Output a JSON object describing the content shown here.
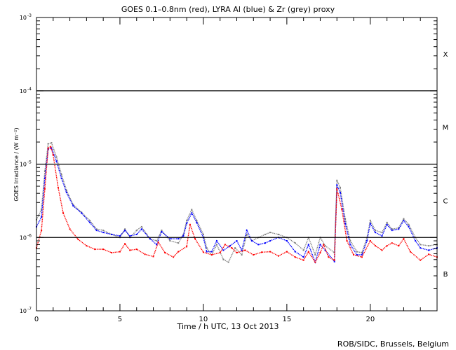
{
  "chart_data": {
    "type": "scatter",
    "title": "GOES 0.1–0.8nm (red), LYRA Al (blue) & Zr (grey) proxy",
    "xlabel": "Time / h UTC, 13 Oct 2013",
    "ylabel": "GOES Irradiance / (W m⁻²)",
    "xlim": [
      0,
      24
    ],
    "ylim": [
      1e-07,
      0.001
    ],
    "yscale": "log",
    "x_ticks": [
      "0",
      "5",
      "10",
      "15",
      "20"
    ],
    "x_tick_values": [
      0,
      5,
      10,
      15,
      20
    ],
    "y_ticks": [
      {
        "base": "10",
        "exp": "-7",
        "value": 1e-07
      },
      {
        "base": "10",
        "exp": "-6",
        "value": 1e-06
      },
      {
        "base": "10",
        "exp": "-5",
        "value": 1e-05
      },
      {
        "base": "10",
        "exp": "-4",
        "value": 0.0001
      },
      {
        "base": "10",
        "exp": "-3",
        "value": 0.001
      }
    ],
    "reference_lines": [
      0.0001,
      1e-05,
      1e-06
    ],
    "flare_classes": [
      {
        "label": "X",
        "value": 0.00032
      },
      {
        "label": "M",
        "value": 3.2e-05
      },
      {
        "label": "C",
        "value": 3.2e-06
      },
      {
        "label": "B",
        "value": 3.2e-07
      }
    ],
    "grid": false,
    "series": [
      {
        "name": "GOES 0.1-0.8nm",
        "color": "#ff0000",
        "x": [
          0,
          0.3,
          0.5,
          0.7,
          0.85,
          1.0,
          1.3,
          1.6,
          2.0,
          2.5,
          3.0,
          3.5,
          4.0,
          4.5,
          5.0,
          5.3,
          5.6,
          6.0,
          6.5,
          7.0,
          7.3,
          7.7,
          8.2,
          8.5,
          9.0,
          9.2,
          9.5,
          10.0,
          10.5,
          11.0,
          11.3,
          11.7,
          12.0,
          12.5,
          13.0,
          13.5,
          14.0,
          14.5,
          15.0,
          15.5,
          16.0,
          16.3,
          16.7,
          17.0,
          17.2,
          17.5,
          17.85,
          18.0,
          18.3,
          18.6,
          19.0,
          19.5,
          20.0,
          20.3,
          20.7,
          21.0,
          21.3,
          21.7,
          22.0,
          22.4,
          23.0,
          23.5,
          24.0
        ],
        "y": [
          7.2e-07,
          1.25e-06,
          4.6e-06,
          1.66e-05,
          1.73e-05,
          1.33e-05,
          4.8e-06,
          2.15e-06,
          1.3e-06,
          9.4e-07,
          7.7e-07,
          6.9e-07,
          6.9e-07,
          6.2e-07,
          6.4e-07,
          8.2e-07,
          6.7e-07,
          6.9e-07,
          5.9e-07,
          5.5e-07,
          8.6e-07,
          6.2e-07,
          5.4e-07,
          6.4e-07,
          7.5e-07,
          1.5e-06,
          9.6e-07,
          6.3e-07,
          5.8e-07,
          6.2e-07,
          8e-07,
          7.2e-07,
          6.2e-07,
          6.7e-07,
          5.8e-07,
          6.3e-07,
          6.4e-07,
          5.6e-07,
          6.4e-07,
          5.4e-07,
          4.9e-07,
          6.4e-07,
          4.6e-07,
          6.2e-07,
          8e-07,
          5.4e-07,
          4.9e-07,
          4.6e-06,
          2.4e-06,
          9e-07,
          5.8e-07,
          5.4e-07,
          9e-07,
          7.7e-07,
          6.7e-07,
          7.7e-07,
          8.4e-07,
          7.7e-07,
          9.6e-07,
          6.4e-07,
          4.9e-07,
          5.9e-07,
          5.4e-07
        ]
      },
      {
        "name": "LYRA Al proxy",
        "color": "#0000ff",
        "x": [
          0,
          0.3,
          0.5,
          0.7,
          0.9,
          1.2,
          1.5,
          1.8,
          2.2,
          2.7,
          3.2,
          3.6,
          4.0,
          4.5,
          5.0,
          5.3,
          5.6,
          6.0,
          6.3,
          6.8,
          7.2,
          7.5,
          8.0,
          8.5,
          8.8,
          9.0,
          9.3,
          9.6,
          10.0,
          10.2,
          10.5,
          10.8,
          11.2,
          11.6,
          12.0,
          12.3,
          12.6,
          12.9,
          13.3,
          13.7,
          14.0,
          14.5,
          15.0,
          15.5,
          16.0,
          16.3,
          16.7,
          17.0,
          17.3,
          17.85,
          18.0,
          18.2,
          18.5,
          18.8,
          19.2,
          19.5,
          19.8,
          20.0,
          20.3,
          20.7,
          21.0,
          21.3,
          21.7,
          22.0,
          22.3,
          22.7,
          23.0,
          23.5,
          24.0
        ],
        "y": [
          1.4e-06,
          1.9e-06,
          6.4e-06,
          1.6e-05,
          1.66e-05,
          1.1e-05,
          6.4e-06,
          4.1e-06,
          2.7e-06,
          2.15e-06,
          1.6e-06,
          1.25e-06,
          1.17e-06,
          1.1e-06,
          1.05e-06,
          1.25e-06,
          1.05e-06,
          1.1e-06,
          1.3e-06,
          9.6e-07,
          8e-07,
          1.2e-06,
          9.6e-07,
          9.6e-07,
          1.05e-06,
          1.55e-06,
          2.15e-06,
          1.6e-06,
          1e-06,
          6.4e-07,
          6.4e-07,
          9e-07,
          6.7e-07,
          7.7e-07,
          9e-07,
          6.7e-07,
          1.25e-06,
          9e-07,
          8e-07,
          8.4e-07,
          9e-07,
          1e-06,
          9e-07,
          6.4e-07,
          5.4e-07,
          8e-07,
          4.6e-07,
          8e-07,
          6.7e-07,
          4.7e-07,
          5.2e-06,
          4.1e-06,
          1.55e-06,
          8e-07,
          5.8e-07,
          5.8e-07,
          9e-07,
          1.55e-06,
          1.17e-06,
          1.05e-06,
          1.5e-06,
          1.25e-06,
          1.3e-06,
          1.7e-06,
          1.4e-06,
          9e-07,
          7.2e-07,
          6.7e-07,
          7.2e-07
        ]
      },
      {
        "name": "LYRA Zr proxy",
        "color": "#808080",
        "x": [
          0,
          0.3,
          0.5,
          0.7,
          0.9,
          1.2,
          1.5,
          1.8,
          2.2,
          2.7,
          3.2,
          3.6,
          4.0,
          4.5,
          5.0,
          5.3,
          5.6,
          6.0,
          6.3,
          6.8,
          7.2,
          7.5,
          8.0,
          8.5,
          8.8,
          9.0,
          9.3,
          9.6,
          10.0,
          10.2,
          10.5,
          10.8,
          11.2,
          11.5,
          11.9,
          12.3,
          12.6,
          12.9,
          13.3,
          13.7,
          14.0,
          14.5,
          15.0,
          15.5,
          16.0,
          16.3,
          16.7,
          17.0,
          17.3,
          17.85,
          18.0,
          18.2,
          18.5,
          18.8,
          19.2,
          19.5,
          19.8,
          20.0,
          20.3,
          20.7,
          21.0,
          21.3,
          21.7,
          22.0,
          22.3,
          22.7,
          23.0,
          23.5,
          24.0
        ],
        "y": [
          1.75e-06,
          2.4e-06,
          8e-06,
          1.9e-05,
          1.95e-05,
          1.25e-05,
          7.2e-06,
          4.4e-06,
          2.8e-06,
          2.2e-06,
          1.7e-06,
          1.3e-06,
          1.25e-06,
          1.1e-06,
          1e-06,
          1.3e-06,
          1e-06,
          1.25e-06,
          1.4e-06,
          9.6e-07,
          9e-07,
          1.25e-06,
          9e-07,
          8.4e-07,
          1.1e-06,
          1.7e-06,
          2.4e-06,
          1.7e-06,
          1.1e-06,
          7.2e-07,
          5.8e-07,
          8e-07,
          5e-07,
          4.6e-07,
          7.2e-07,
          5.8e-07,
          1.1e-06,
          9e-07,
          1e-06,
          1.1e-06,
          1.17e-06,
          1.1e-06,
          1e-06,
          8.4e-07,
          6.7e-07,
          1e-06,
          5.8e-07,
          1e-06,
          7.7e-07,
          6.2e-07,
          6e-06,
          4.8e-06,
          1.8e-06,
          9e-07,
          6.4e-07,
          6.2e-07,
          1e-06,
          1.7e-06,
          1.25e-06,
          1.17e-06,
          1.6e-06,
          1.3e-06,
          1.35e-06,
          1.8e-06,
          1.5e-06,
          1e-06,
          8e-07,
          7.7e-07,
          8e-07
        ]
      }
    ]
  },
  "footer": "ROB/SIDC, Brussels, Belgium"
}
